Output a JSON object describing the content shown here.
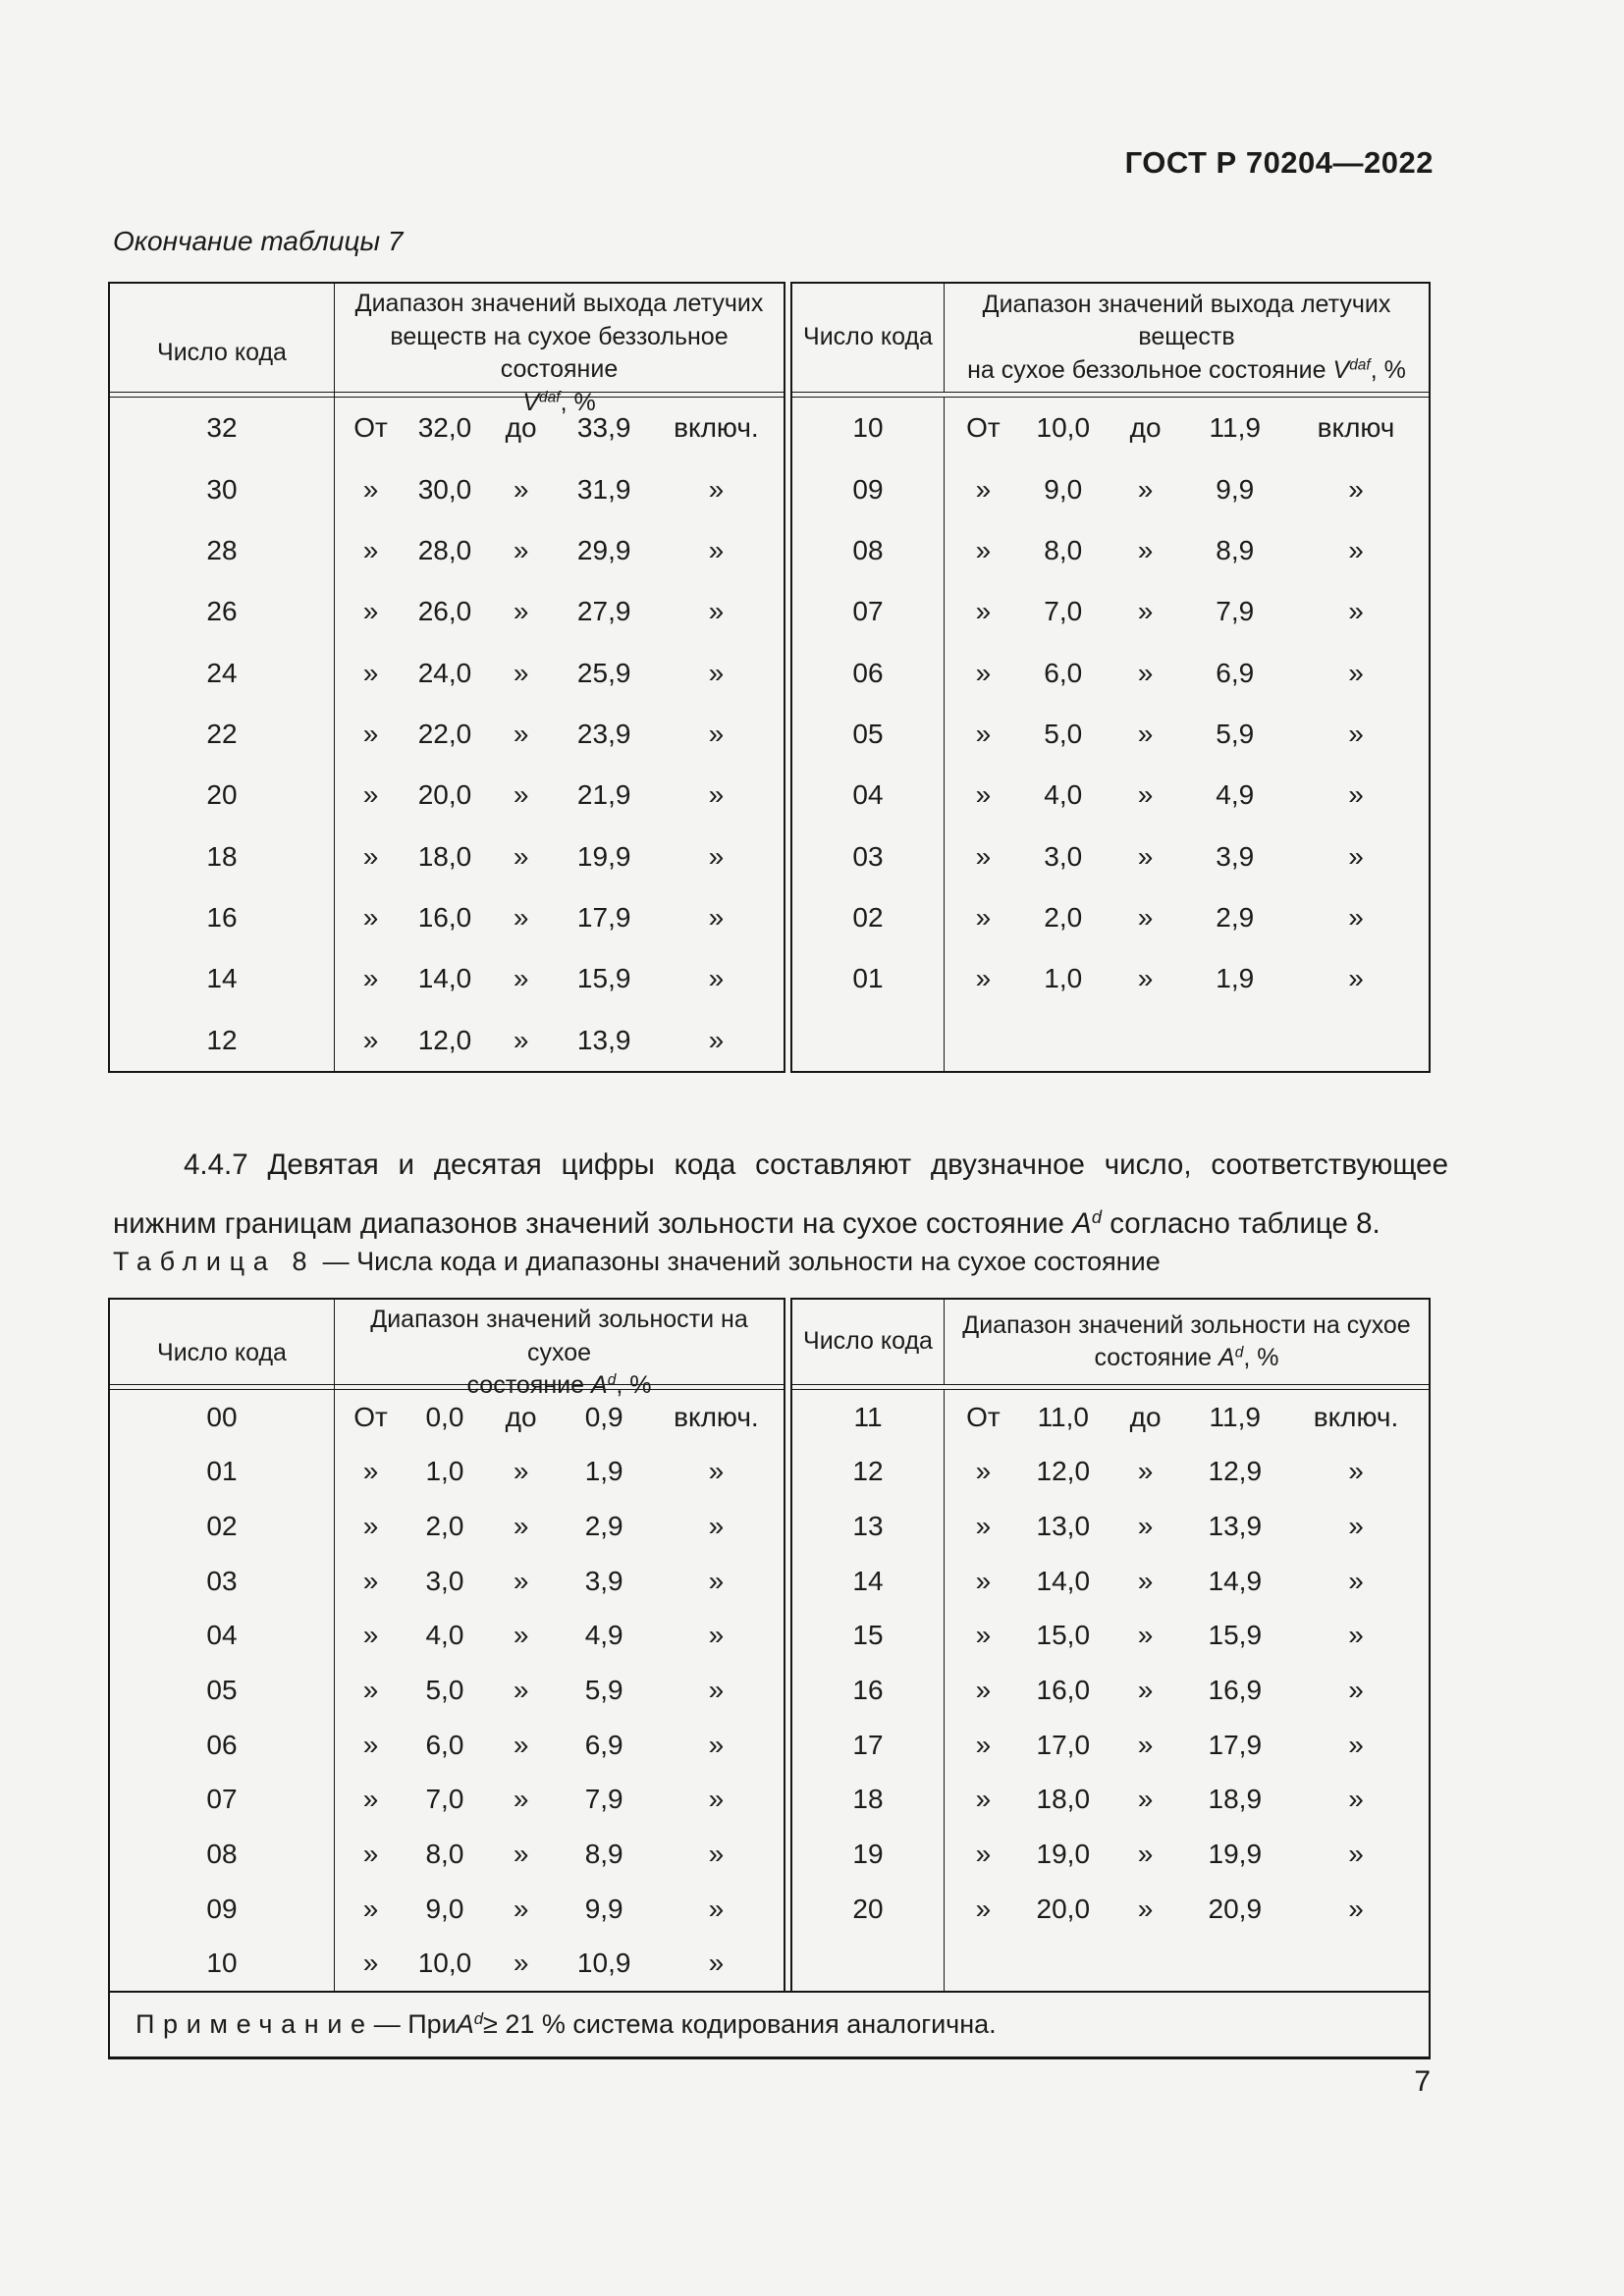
{
  "header": {
    "title": "ГОСТ Р 70204—2022"
  },
  "footer": {
    "page_number": "7"
  },
  "table7": {
    "continuation_caption": "Окончание таблицы 7",
    "variable": {
      "name": "V",
      "sup": "daf",
      "unit": ", %"
    },
    "left": {
      "code_header": "Число кода",
      "range_header_lines": [
        "Диапазон значений выхода летучих",
        "веществ на сухое беззольное состояние"
      ],
      "rows": [
        {
          "code": "32",
          "from_word": "От",
          "from": "32,0",
          "to_word": "до",
          "to": "33,9",
          "incl": "включ."
        },
        {
          "code": "30",
          "from_word": "»",
          "from": "30,0",
          "to_word": "»",
          "to": "31,9",
          "incl": "»"
        },
        {
          "code": "28",
          "from_word": "»",
          "from": "28,0",
          "to_word": "»",
          "to": "29,9",
          "incl": "»"
        },
        {
          "code": "26",
          "from_word": "»",
          "from": "26,0",
          "to_word": "»",
          "to": "27,9",
          "incl": "»"
        },
        {
          "code": "24",
          "from_word": "»",
          "from": "24,0",
          "to_word": "»",
          "to": "25,9",
          "incl": "»"
        },
        {
          "code": "22",
          "from_word": "»",
          "from": "22,0",
          "to_word": "»",
          "to": "23,9",
          "incl": "»"
        },
        {
          "code": "20",
          "from_word": "»",
          "from": "20,0",
          "to_word": "»",
          "to": "21,9",
          "incl": "»"
        },
        {
          "code": "18",
          "from_word": "»",
          "from": "18,0",
          "to_word": "»",
          "to": "19,9",
          "incl": "»"
        },
        {
          "code": "16",
          "from_word": "»",
          "from": "16,0",
          "to_word": "»",
          "to": "17,9",
          "incl": "»"
        },
        {
          "code": "14",
          "from_word": "»",
          "from": "14,0",
          "to_word": "»",
          "to": "15,9",
          "incl": "»"
        },
        {
          "code": "12",
          "from_word": "»",
          "from": "12,0",
          "to_word": "»",
          "to": "13,9",
          "incl": "»"
        }
      ]
    },
    "right": {
      "code_header": "Число кода",
      "range_header_lines": [
        "Диапазон значений выхода летучих веществ",
        "на сухое беззольное состояние"
      ],
      "rows": [
        {
          "code": "10",
          "from_word": "От",
          "from": "10,0",
          "to_word": "до",
          "to": "11,9",
          "incl": "включ"
        },
        {
          "code": "09",
          "from_word": "»",
          "from": "9,0",
          "to_word": "»",
          "to": "9,9",
          "incl": "»"
        },
        {
          "code": "08",
          "from_word": "»",
          "from": "8,0",
          "to_word": "»",
          "to": "8,9",
          "incl": "»"
        },
        {
          "code": "07",
          "from_word": "»",
          "from": "7,0",
          "to_word": "»",
          "to": "7,9",
          "incl": "»"
        },
        {
          "code": "06",
          "from_word": "»",
          "from": "6,0",
          "to_word": "»",
          "to": "6,9",
          "incl": "»"
        },
        {
          "code": "05",
          "from_word": "»",
          "from": "5,0",
          "to_word": "»",
          "to": "5,9",
          "incl": "»"
        },
        {
          "code": "04",
          "from_word": "»",
          "from": "4,0",
          "to_word": "»",
          "to": "4,9",
          "incl": "»"
        },
        {
          "code": "03",
          "from_word": "»",
          "from": "3,0",
          "to_word": "»",
          "to": "3,9",
          "incl": "»"
        },
        {
          "code": "02",
          "from_word": "»",
          "from": "2,0",
          "to_word": "»",
          "to": "2,9",
          "incl": "»"
        },
        {
          "code": "01",
          "from_word": "»",
          "from": "1,0",
          "to_word": "»",
          "to": "1,9",
          "incl": "»"
        },
        {}
      ]
    }
  },
  "paragraph_447": {
    "p1": "4.4.7 Девятая и десятая цифры кода составляют двузначное число, соответствующее нижним границам диапазонов значений зольности на сухое состояние ",
    "var": "A",
    "var_sup": "d",
    "p2": " согласно таблице 8."
  },
  "table8": {
    "caption_label": "Таблица 8",
    "caption_text": " — Числа кода и диапазоны значений зольности на сухое состояние",
    "variable": {
      "name": "A",
      "sup": "d",
      "unit": ", %"
    },
    "left": {
      "code_header": "Число кода",
      "range_header_lines": [
        "Диапазон значений зольности на сухое",
        "состояние"
      ],
      "rows": [
        {
          "code": "00",
          "from_word": "От",
          "from": "0,0",
          "to_word": "до",
          "to": "0,9",
          "incl": "включ."
        },
        {
          "code": "01",
          "from_word": "»",
          "from": "1,0",
          "to_word": "»",
          "to": "1,9",
          "incl": "»"
        },
        {
          "code": "02",
          "from_word": "»",
          "from": "2,0",
          "to_word": "»",
          "to": "2,9",
          "incl": "»"
        },
        {
          "code": "03",
          "from_word": "»",
          "from": "3,0",
          "to_word": "»",
          "to": "3,9",
          "incl": "»"
        },
        {
          "code": "04",
          "from_word": "»",
          "from": "4,0",
          "to_word": "»",
          "to": "4,9",
          "incl": "»"
        },
        {
          "code": "05",
          "from_word": "»",
          "from": "5,0",
          "to_word": "»",
          "to": "5,9",
          "incl": "»"
        },
        {
          "code": "06",
          "from_word": "»",
          "from": "6,0",
          "to_word": "»",
          "to": "6,9",
          "incl": "»"
        },
        {
          "code": "07",
          "from_word": "»",
          "from": "7,0",
          "to_word": "»",
          "to": "7,9",
          "incl": "»"
        },
        {
          "code": "08",
          "from_word": "»",
          "from": "8,0",
          "to_word": "»",
          "to": "8,9",
          "incl": "»"
        },
        {
          "code": "09",
          "from_word": "»",
          "from": "9,0",
          "to_word": "»",
          "to": "9,9",
          "incl": "»"
        },
        {
          "code": "10",
          "from_word": "»",
          "from": "10,0",
          "to_word": "»",
          "to": "10,9",
          "incl": "»"
        }
      ]
    },
    "right": {
      "code_header": "Число кода",
      "range_header_lines": [
        "Диапазон значений зольности на сухое",
        "состояние"
      ],
      "rows": [
        {
          "code": "11",
          "from_word": "От",
          "from": "11,0",
          "to_word": "до",
          "to": "11,9",
          "incl": "включ."
        },
        {
          "code": "12",
          "from_word": "»",
          "from": "12,0",
          "to_word": "»",
          "to": "12,9",
          "incl": "»"
        },
        {
          "code": "13",
          "from_word": "»",
          "from": "13,0",
          "to_word": "»",
          "to": "13,9",
          "incl": "»"
        },
        {
          "code": "14",
          "from_word": "»",
          "from": "14,0",
          "to_word": "»",
          "to": "14,9",
          "incl": "»"
        },
        {
          "code": "15",
          "from_word": "»",
          "from": "15,0",
          "to_word": "»",
          "to": "15,9",
          "incl": "»"
        },
        {
          "code": "16",
          "from_word": "»",
          "from": "16,0",
          "to_word": "»",
          "to": "16,9",
          "incl": "»"
        },
        {
          "code": "17",
          "from_word": "»",
          "from": "17,0",
          "to_word": "»",
          "to": "17,9",
          "incl": "»"
        },
        {
          "code": "18",
          "from_word": "»",
          "from": "18,0",
          "to_word": "»",
          "to": "18,9",
          "incl": "»"
        },
        {
          "code": "19",
          "from_word": "»",
          "from": "19,0",
          "to_word": "»",
          "to": "19,9",
          "incl": "»"
        },
        {
          "code": "20",
          "from_word": "»",
          "from": "20,0",
          "to_word": "»",
          "to": "20,9",
          "incl": "»"
        },
        {}
      ]
    },
    "note": {
      "label": "Примечание",
      "p1": " — При ",
      "var": "A",
      "var_sup": "d",
      "p2": " ≥ 21 % система кодирования аналогична."
    }
  }
}
